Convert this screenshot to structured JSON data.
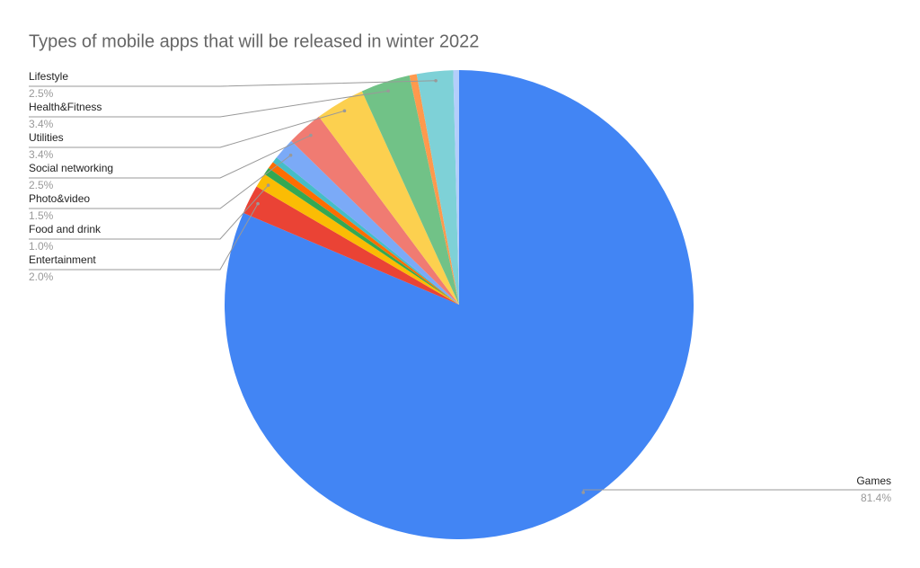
{
  "chart_data": {
    "type": "pie",
    "title": "Types of mobile apps that will be released in winter 2022",
    "categories": [
      "Games",
      "Entertainment",
      "Food and drink",
      null,
      null,
      null,
      "Photo&video",
      "Social networking",
      "Utilities",
      "Health&Fitness",
      null,
      "Lifestyle",
      null
    ],
    "values": [
      81.4,
      2.0,
      1.0,
      0.5,
      0.5,
      0.4,
      1.5,
      2.5,
      3.4,
      3.4,
      0.5,
      2.5,
      0.4
    ],
    "value_labels": [
      "81.4%",
      "2.0%",
      "1.0%",
      null,
      null,
      null,
      "1.5%",
      "2.5%",
      "3.4%",
      "3.4%",
      null,
      "2.5%",
      null
    ],
    "colors": [
      "#4285f4",
      "#ea4335",
      "#fbbc04",
      "#34a853",
      "#ff6d01",
      "#46bdc6",
      "#7baaf7",
      "#f07b72",
      "#fcd04f",
      "#71c287",
      "#ff994d",
      "#7ed1d7",
      "#b3cefb"
    ]
  }
}
